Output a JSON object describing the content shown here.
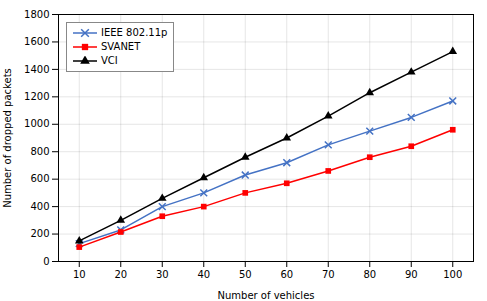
{
  "chart_data": {
    "type": "line",
    "x": [
      10,
      20,
      30,
      40,
      50,
      60,
      70,
      80,
      90,
      100
    ],
    "series": [
      {
        "name": "IEEE 802.11p",
        "color": "#4472c4",
        "marker": "x",
        "values": [
          130,
          230,
          400,
          500,
          630,
          720,
          850,
          950,
          1050,
          1170
        ]
      },
      {
        "name": "SVANET",
        "color": "#ff0000",
        "marker": "square",
        "values": [
          105,
          215,
          330,
          400,
          500,
          570,
          660,
          760,
          840,
          960
        ]
      },
      {
        "name": "VCI",
        "color": "#000000",
        "marker": "triangle",
        "values": [
          150,
          300,
          460,
          610,
          760,
          900,
          1060,
          1230,
          1380,
          1530
        ]
      }
    ],
    "xlabel": "Number of vehicles",
    "ylabel": "Number of dropped packets",
    "xlim": [
      5,
      105
    ],
    "ylim": [
      0,
      1800
    ],
    "xticks": [
      10,
      20,
      30,
      40,
      50,
      60,
      70,
      80,
      90,
      100
    ],
    "yticks": [
      0,
      200,
      400,
      600,
      800,
      1000,
      1200,
      1400,
      1600,
      1800
    ],
    "grid": true,
    "legend": "upper left"
  }
}
